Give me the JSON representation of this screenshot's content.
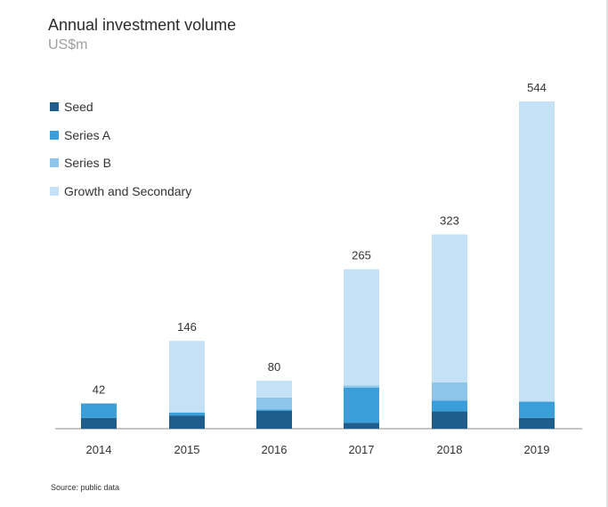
{
  "chart_data": {
    "type": "bar",
    "stacked": true,
    "title": "Annual investment volume",
    "subtitle": "US$m",
    "categories": [
      "2014",
      "2015",
      "2016",
      "2017",
      "2018",
      "2019"
    ],
    "totals": [
      42,
      146,
      80,
      265,
      323,
      544
    ],
    "series": [
      {
        "name": "Seed",
        "color": "#1f5d8c",
        "values": [
          18,
          22,
          30,
          10,
          29,
          18
        ]
      },
      {
        "name": "Series A",
        "color": "#3a9fd9",
        "values": [
          24,
          5,
          2,
          58,
          18,
          27
        ]
      },
      {
        "name": "Series B",
        "color": "#8dc6ea",
        "values": [
          0,
          0,
          20,
          4,
          30,
          0
        ]
      },
      {
        "name": "Growth and Secondary",
        "color": "#c5e1f5",
        "values": [
          0,
          119,
          28,
          193,
          246,
          499
        ]
      }
    ],
    "ylim": [
      0,
      544
    ],
    "xlabel": "",
    "ylabel": "",
    "legend_position": "top-left",
    "grid": false
  },
  "source": "Source: public data"
}
